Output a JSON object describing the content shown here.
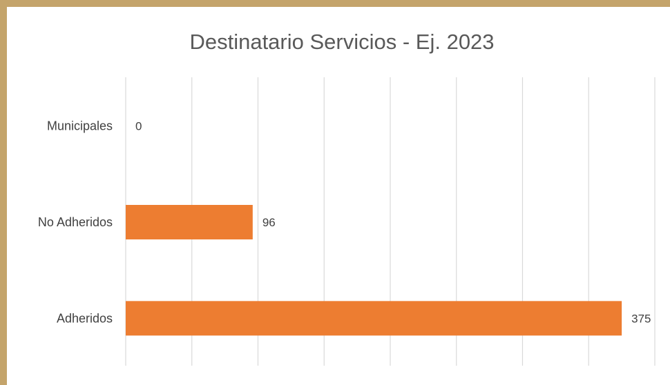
{
  "chart_data": {
    "type": "bar",
    "orientation": "horizontal",
    "title": "Destinatario Servicios - Ej. 2023",
    "categories": [
      "Municipales",
      "No Adheridos",
      "Adheridos"
    ],
    "values": [
      0,
      96,
      375
    ],
    "data_labels": [
      "0",
      "96",
      "375"
    ],
    "xlim": [
      0,
      400
    ],
    "grid": true,
    "legend": "none",
    "bar_color": "#ed7d31"
  }
}
